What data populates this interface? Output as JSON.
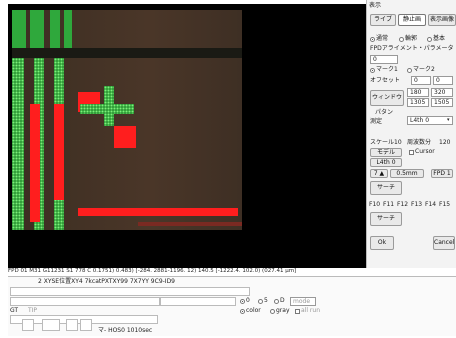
{
  "panel": {
    "title": "表示",
    "tabs": [
      "ライブ",
      "静止画",
      "表示画像"
    ],
    "mode_radios": [
      "通常",
      "輪郭",
      "基本"
    ],
    "fpd_label": "FPDアライメント・パラメータ",
    "fpd_value": "0",
    "mark_radios": [
      "マーク1",
      "マーク2"
    ],
    "offset_label": "オフセット",
    "offset_values": [
      "0",
      "0"
    ],
    "window_button": "ウィンドウ",
    "window_values": [
      "180",
      "320",
      "1305",
      "1505"
    ],
    "pattern_label": "パタン",
    "detect_label": "測定",
    "detect_value": "L4th 0",
    "scale_label": "スケール",
    "scale_value": "10",
    "freq_label": "周波数分",
    "freq_value": "120",
    "model_button": "モデル",
    "cursor_label": "Cursor",
    "l4th_button": "L4th 0",
    "zoom_minus": "7 ▲",
    "zoom_value": "0.5mm",
    "fp_button": "FPD 1",
    "search_button": "サーチ",
    "function_keys": [
      "F10",
      "F11",
      "F12",
      "F13",
      "F14",
      "F15"
    ],
    "search_button2": "サーチ",
    "ok_button": "Ok",
    "cancel_button": "Cancel"
  },
  "status_bar": "FPD 01 M31 G11231 S1 778   C  0.1751)  0.483) [-284.  2881-1196.   12) 140.5 [-1222.4.   102.0) (027.41 μm]",
  "status_bar2": "2  XYSE位置XY4 7kcatPXTXY99 7X7YY 9C9-ID9",
  "sub": {
    "row1_field": "",
    "row2_left": "",
    "coord_field": "",
    "radios_a": [
      "0",
      "5",
      "D"
    ],
    "mode_select": "mode",
    "color_radio": "color",
    "gray_radio": "gray",
    "all_label": "all run",
    "bottom_text": "マ- HOS0 1010sec",
    "gt_label": "GT",
    "tip_label": "TIP"
  }
}
